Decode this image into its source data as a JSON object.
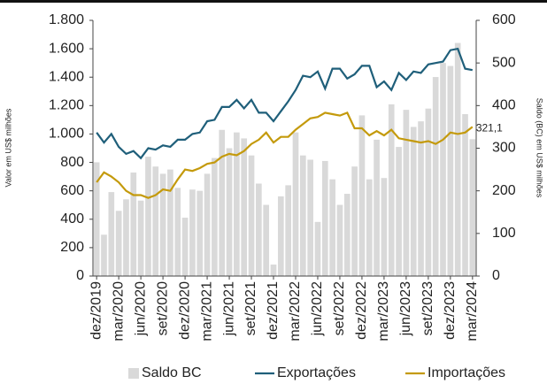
{
  "chart_data": {
    "type": "bar-line",
    "categories": [
      "dez/2019",
      null,
      null,
      "mar/2020",
      null,
      null,
      "jun/2020",
      null,
      null,
      "set/2020",
      null,
      null,
      "dez/2020",
      null,
      null,
      "mar/2021",
      null,
      null,
      "jun/2021",
      null,
      null,
      "set/2021",
      null,
      null,
      "dez/2021",
      null,
      null,
      "mar/2022",
      null,
      null,
      "jun/2022",
      null,
      null,
      "set/2022",
      null,
      null,
      "dez/2022",
      null,
      null,
      "mar/2023",
      null,
      null,
      "jun/2023",
      null,
      null,
      "set/2023",
      null,
      null,
      "dez/2023",
      null,
      null,
      "mar/2024"
    ],
    "series": [
      {
        "name": "Saldo BC",
        "type": "bar",
        "axis": "y2",
        "color": "#d9d9d9",
        "values": [
          267,
          97,
          197,
          153,
          180,
          243,
          177,
          280,
          257,
          240,
          250,
          207,
          137,
          203,
          200,
          240,
          277,
          343,
          300,
          337,
          323,
          283,
          217,
          167,
          27,
          187,
          213,
          337,
          283,
          273,
          127,
          270,
          227,
          167,
          193,
          257,
          377,
          227,
          320,
          230,
          403,
          303,
          390,
          350,
          363,
          393,
          467,
          500,
          493,
          547,
          380,
          321.1
        ],
        "value_labels": [
          null,
          null,
          null,
          null,
          null,
          null,
          null,
          null,
          null,
          null,
          null,
          null,
          null,
          null,
          null,
          null,
          null,
          null,
          null,
          null,
          null,
          null,
          null,
          null,
          null,
          null,
          null,
          null,
          null,
          null,
          null,
          null,
          null,
          null,
          null,
          null,
          null,
          null,
          null,
          null,
          null,
          null,
          null,
          null,
          null,
          null,
          null,
          null,
          null,
          null,
          null,
          "321,1"
        ]
      },
      {
        "name": "Exportações",
        "type": "line",
        "color": "#1f5f7a",
        "values": [
          1010,
          940,
          1000,
          910,
          860,
          880,
          830,
          900,
          890,
          920,
          910,
          960,
          960,
          1000,
          1010,
          1090,
          1100,
          1190,
          1190,
          1240,
          1180,
          1240,
          1150,
          1150,
          1090,
          1160,
          1230,
          1310,
          1410,
          1400,
          1440,
          1320,
          1460,
          1460,
          1390,
          1420,
          1480,
          1480,
          1330,
          1370,
          1310,
          1430,
          1380,
          1440,
          1430,
          1490,
          1500,
          1510,
          1590,
          1600,
          1460,
          1450
        ]
      },
      {
        "name": "Importações",
        "type": "line",
        "color": "#c49a0c",
        "values": [
          660,
          730,
          700,
          660,
          600,
          570,
          570,
          550,
          570,
          610,
          600,
          680,
          750,
          740,
          760,
          790,
          800,
          840,
          860,
          850,
          880,
          930,
          960,
          1010,
          940,
          980,
          980,
          1030,
          1070,
          1110,
          1120,
          1150,
          1140,
          1130,
          1150,
          1040,
          1040,
          990,
          1020,
          990,
          1030,
          970,
          960,
          950,
          940,
          950,
          930,
          960,
          1010,
          1000,
          1010,
          1050
        ]
      }
    ],
    "ylabel": "Valor em US$ milhões",
    "y2label": "Saldo (BC) em US$ milhões",
    "ylim": [
      0,
      1800
    ],
    "yticks": [
      0,
      200,
      400,
      600,
      800,
      {
        "value": 1000,
        "label": "1.000"
      },
      {
        "value": 1200,
        "label": "1.200"
      },
      {
        "value": 1400,
        "label": "1.400"
      },
      {
        "value": 1600,
        "label": "1.600"
      },
      {
        "value": 1800,
        "label": "1.800"
      }
    ],
    "y2lim": [
      0,
      600
    ],
    "y2ticks": [
      0,
      100,
      200,
      300,
      400,
      500,
      600
    ],
    "legend": "bottom"
  }
}
